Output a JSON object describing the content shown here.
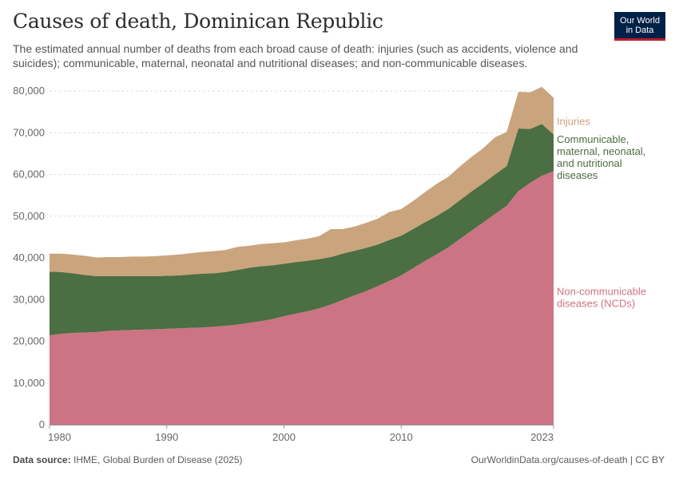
{
  "header": {
    "title": "Causes of death, Dominican Republic",
    "subtitle": "The estimated annual number of deaths from each broad cause of death: injuries (such as accidents, violence and suicides); communicable, maternal, neonatal and nutritional diseases; and non-communicable diseases.",
    "logo_line1": "Our World",
    "logo_line2": "in Data"
  },
  "footer": {
    "source_label": "Data source:",
    "source_text": "IHME, Global Burden of Disease (2025)",
    "url": "OurWorldinData.org/causes-of-death | CC BY"
  },
  "colors": {
    "ncd": "#cc7484",
    "communicable": "#4b6e42",
    "injuries": "#caa47c",
    "grid": "#dddddd",
    "axis_text": "#666666"
  },
  "chart_data": {
    "type": "area",
    "stacked": true,
    "x": [
      1980,
      1981,
      1982,
      1983,
      1984,
      1985,
      1986,
      1987,
      1988,
      1989,
      1990,
      1991,
      1992,
      1993,
      1994,
      1995,
      1996,
      1997,
      1998,
      1999,
      2000,
      2001,
      2002,
      2003,
      2004,
      2005,
      2006,
      2007,
      2008,
      2009,
      2010,
      2011,
      2012,
      2013,
      2014,
      2015,
      2016,
      2017,
      2018,
      2019,
      2020,
      2021,
      2022,
      2023
    ],
    "xlim": [
      1980,
      2023
    ],
    "ylim": [
      0,
      80000
    ],
    "x_ticks": [
      "1980",
      "1990",
      "2000",
      "2010",
      "2023"
    ],
    "x_tick_values": [
      1980,
      1990,
      2000,
      2010,
      2023
    ],
    "y_ticks": [
      "0",
      "10,000",
      "20,000",
      "30,000",
      "40,000",
      "50,000",
      "60,000",
      "70,000",
      "80,000"
    ],
    "y_tick_values": [
      0,
      10000,
      20000,
      30000,
      40000,
      50000,
      60000,
      70000,
      80000
    ],
    "grid": true,
    "legend_placement": "right, inline labels",
    "series": [
      {
        "name": "Non-communicable diseases (NCDs)",
        "label_lines": [
          "Non-communicable",
          "diseases (NCDs)"
        ],
        "color_key": "ncd",
        "values": [
          21400,
          21800,
          22000,
          22100,
          22200,
          22500,
          22600,
          22700,
          22800,
          22900,
          23000,
          23100,
          23200,
          23300,
          23500,
          23700,
          24000,
          24400,
          24800,
          25300,
          26000,
          26600,
          27200,
          27900,
          28800,
          29900,
          31000,
          32000,
          33200,
          34500,
          35800,
          37500,
          39200,
          40800,
          42500,
          44500,
          46500,
          48500,
          50500,
          52500,
          56000,
          58000,
          59700,
          60800
        ]
      },
      {
        "name": "Communicable, maternal, neonatal, and nutritional diseases",
        "label_lines": [
          "Communicable,",
          "maternal, neonatal,",
          "and nutritional",
          "diseases"
        ],
        "color_key": "communicable",
        "values": [
          15300,
          14800,
          14300,
          13800,
          13400,
          13100,
          13000,
          12900,
          12800,
          12700,
          12700,
          12700,
          12800,
          12900,
          12800,
          12900,
          13100,
          13200,
          13200,
          12900,
          12600,
          12400,
          12100,
          11800,
          11400,
          11100,
          10700,
          10400,
          10000,
          9800,
          9500,
          9400,
          9300,
          9200,
          9200,
          9300,
          9400,
          9400,
          9500,
          9500,
          15000,
          12900,
          12400,
          8800
        ]
      },
      {
        "name": "Injuries",
        "label_lines": [
          "Injuries"
        ],
        "color_key": "injuries",
        "values": [
          4300,
          4400,
          4500,
          4600,
          4500,
          4600,
          4600,
          4700,
          4700,
          4800,
          4900,
          5000,
          5100,
          5200,
          5300,
          5300,
          5500,
          5300,
          5300,
          5300,
          5100,
          5200,
          5300,
          5500,
          6700,
          5900,
          5800,
          6000,
          6200,
          6700,
          6400,
          6700,
          7200,
          7700,
          7700,
          8100,
          8300,
          8400,
          8900,
          8200,
          8800,
          8800,
          8900,
          8800
        ]
      }
    ]
  }
}
